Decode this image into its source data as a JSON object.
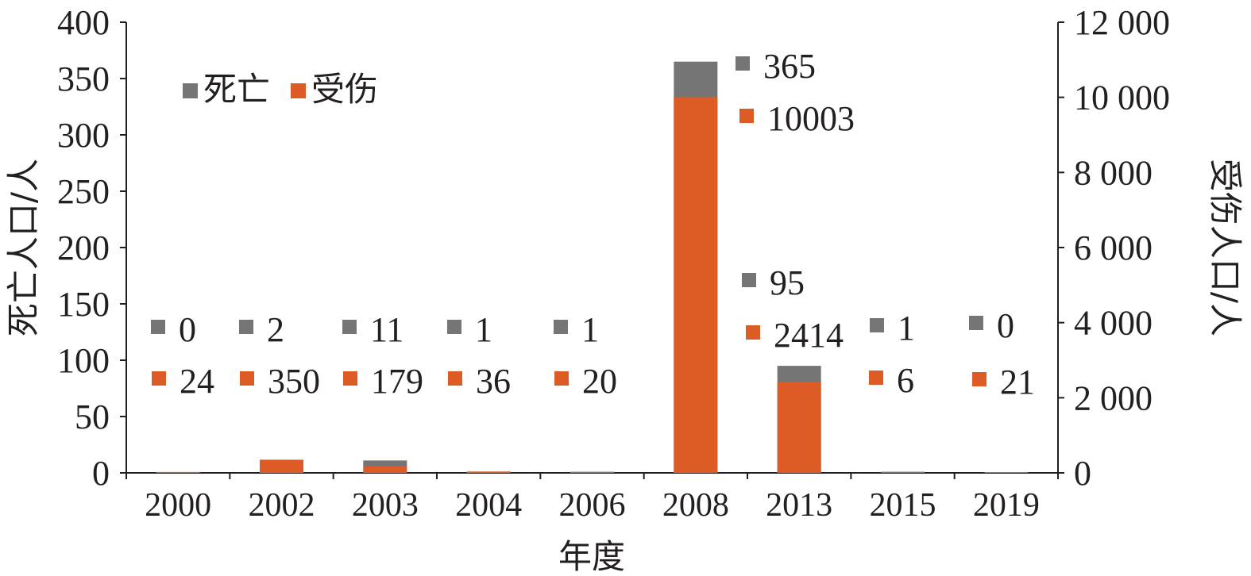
{
  "chart_data": {
    "type": "bar",
    "stacked": true,
    "categories": [
      "2000",
      "2002",
      "2003",
      "2004",
      "2006",
      "2008",
      "2013",
      "2015",
      "2019"
    ],
    "series": [
      {
        "name": "死亡",
        "axis": "left",
        "color": "#757575",
        "values": [
          0,
          2,
          11,
          1,
          1,
          365,
          95,
          1,
          0
        ],
        "labels": [
          "0",
          "2",
          "11",
          "1",
          "1",
          "365",
          "95",
          "1",
          "0"
        ]
      },
      {
        "name": "受伤",
        "axis": "right",
        "color": "#dd5c26",
        "values": [
          24,
          350,
          179,
          36,
          20,
          10003,
          2414,
          6,
          21
        ],
        "labels": [
          "24",
          "350",
          "179",
          "36",
          "20",
          "10003",
          "2414",
          "6",
          "21"
        ]
      }
    ],
    "xlabel": "年度",
    "ylabel_left": "死亡人口/人",
    "ylabel_right": "受伤人口/人",
    "ylim_left": [
      0,
      400
    ],
    "ylim_right": [
      0,
      12000
    ],
    "yticks_left": [
      "0",
      "50",
      "100",
      "150",
      "200",
      "250",
      "300",
      "350",
      "400"
    ],
    "yticks_right": [
      "0",
      "2 000",
      "4 000",
      "6 000",
      "8 000",
      "10 000",
      "12 000"
    ],
    "grid": false,
    "legend_position": "top-left"
  }
}
